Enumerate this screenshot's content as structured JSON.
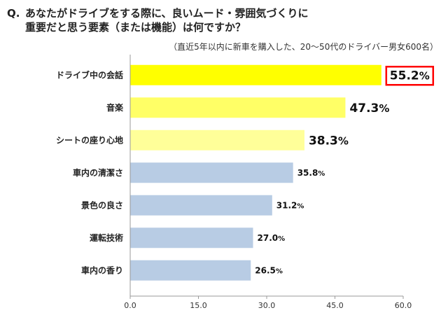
{
  "title": {
    "prefix": "Q.",
    "line1": "あなたがドライブをする際に、良いムード・雰囲気づくりに",
    "line2": "重要だと思う要素（または機能）は何ですか？"
  },
  "subtitle": "（直近5年以内に新車を購入した、20～50代のドライバー男女600名）",
  "chart_data": {
    "type": "bar",
    "orientation": "horizontal",
    "categories": [
      "ドライブ中の会話",
      "音楽",
      "シートの座り心地",
      "車内の清潔さ",
      "景色の良さ",
      "運転技術",
      "車内の香り"
    ],
    "values": [
      55.2,
      47.3,
      38.3,
      35.8,
      31.2,
      27.0,
      26.5
    ],
    "value_labels": [
      "55.2",
      "47.3",
      "38.3",
      "35.8",
      "31.2",
      "27.0",
      "26.5"
    ],
    "unit": "%",
    "xlim": [
      0,
      60
    ],
    "ticks": [
      "0.0",
      "15.0",
      "30.0",
      "45.0",
      "60.0"
    ],
    "colors": [
      "#ffff00",
      "#ffff66",
      "#ffff99",
      "#b8cce4",
      "#b8cce4",
      "#b8cce4",
      "#b8cce4"
    ],
    "highlight_color": "#ff0000",
    "grid": false
  }
}
